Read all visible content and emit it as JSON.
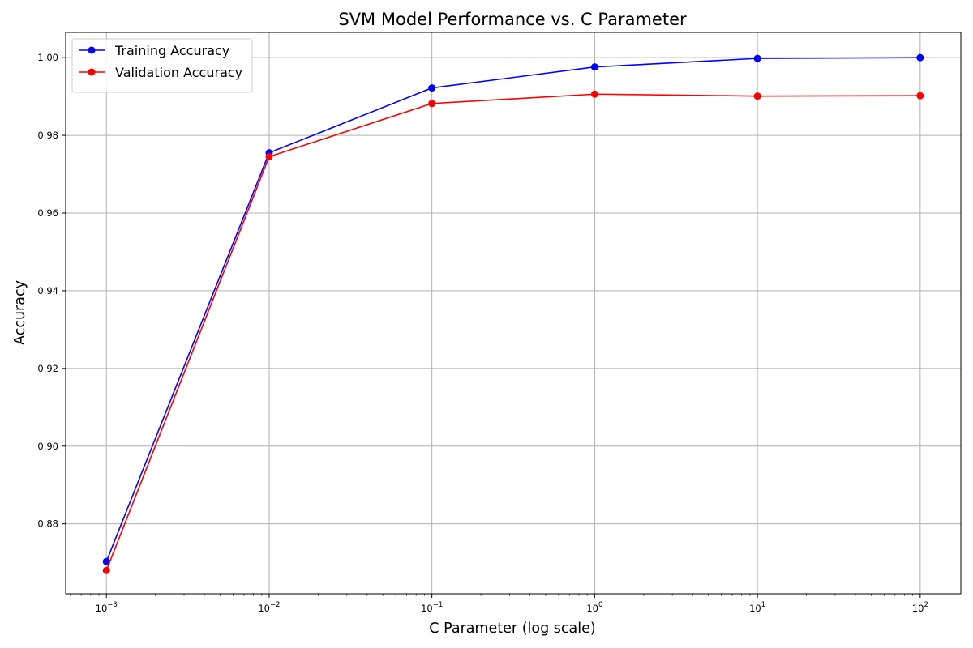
{
  "chart_data": {
    "type": "line",
    "title": "SVM Model Performance vs. C Parameter",
    "xlabel": "C Parameter (log scale)",
    "ylabel": "Accuracy",
    "x_scale": "log",
    "x": [
      0.001,
      0.01,
      0.1,
      1,
      10,
      100
    ],
    "xlim": [
      0.000562,
      177.8
    ],
    "ylim": [
      0.862,
      1.0065
    ],
    "x_ticks": [
      {
        "value": 0.001,
        "base": "10",
        "exp": "−3"
      },
      {
        "value": 0.01,
        "base": "10",
        "exp": "−2"
      },
      {
        "value": 0.1,
        "base": "10",
        "exp": "−1"
      },
      {
        "value": 1,
        "base": "10",
        "exp": "0"
      },
      {
        "value": 10,
        "base": "10",
        "exp": "1"
      },
      {
        "value": 100,
        "base": "10",
        "exp": "2"
      }
    ],
    "y_ticks": [
      {
        "value": 0.88,
        "label": "0.88"
      },
      {
        "value": 0.9,
        "label": "0.90"
      },
      {
        "value": 0.92,
        "label": "0.92"
      },
      {
        "value": 0.94,
        "label": "0.94"
      },
      {
        "value": 0.96,
        "label": "0.96"
      },
      {
        "value": 0.98,
        "label": "0.98"
      },
      {
        "value": 1.0,
        "label": "1.00"
      }
    ],
    "grid": true,
    "legend_position": "top-left",
    "series": [
      {
        "name": "Training Accuracy",
        "color": "#0000ff",
        "marker": "circle",
        "values": [
          0.8703,
          0.9755,
          0.9922,
          0.9976,
          0.9998,
          1.0
        ]
      },
      {
        "name": "Validation Accuracy",
        "color": "#ff0000",
        "marker": "circle",
        "values": [
          0.868,
          0.9745,
          0.9882,
          0.9906,
          0.9901,
          0.9902
        ]
      }
    ]
  }
}
